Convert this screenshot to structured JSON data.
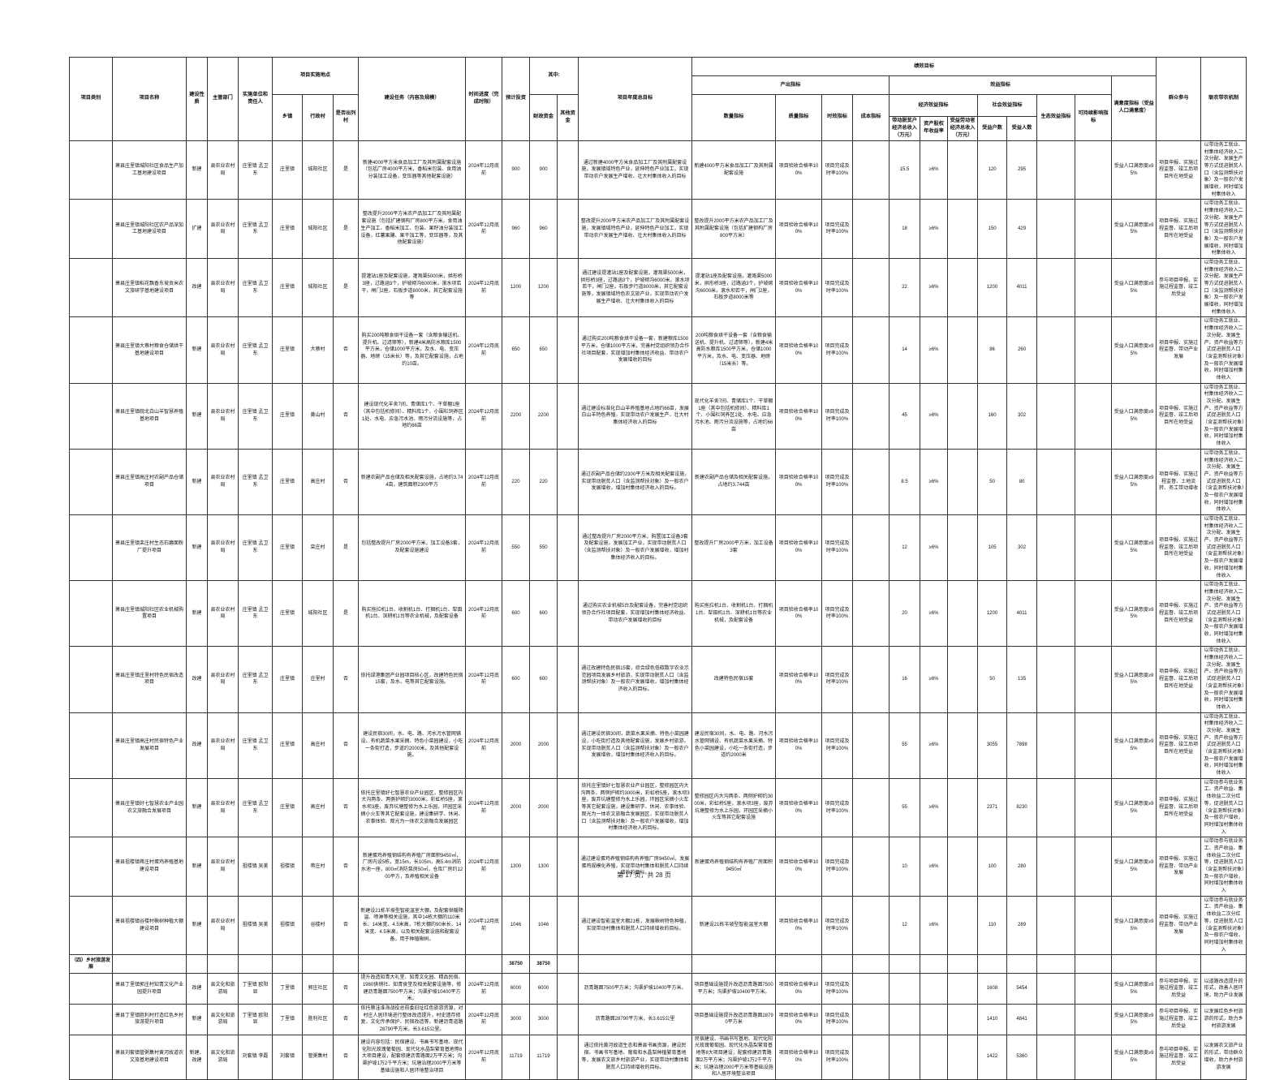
{
  "page": {
    "footer": "第 17 页，共 28 页"
  },
  "table": {
    "header": {
      "category": "项目类别",
      "name": "项目名称",
      "nature": "建设性质",
      "dept": "主管部门",
      "unit": "实施单位和责任人",
      "location": "项目实施地点",
      "town": "乡镇",
      "village": "行政村",
      "listed": "是否出列村",
      "task": "建设任务（内容及规模）",
      "time": "时间进度（完成时限）",
      "invest": "预计投资",
      "among": "其中:",
      "fiscal": "财政资金",
      "other": "其他资金",
      "goal": "项目年度总目标",
      "perf": "绩效目标",
      "output": "产出指标",
      "benefit": "效益指标",
      "qty": "数量指标",
      "quality": "质量指标",
      "timeliness": "时效指标",
      "cost": "成本指标",
      "econ": "经济效益指标",
      "social": "社会效益指标",
      "e1": "带动脱贫户经济总收入（万元）",
      "e2": "资产股权年收益率",
      "e3": "受益劳动者经济总收入（万元）",
      "hh": "受益户数",
      "ppl": "受益人数",
      "eco": "生态效益指标",
      "sus": "可持续影响指标",
      "sat": "满意度指标（受益人口满意度）",
      "part": "群众参与",
      "mech": "联农带农机制"
    },
    "rows": [
      {
        "cat": "",
        "name": "萧县庄里镇城阳社区食品生产加工基地建设项目",
        "nature": "新建",
        "dept": "县农业农村局",
        "unit": "庄里镇 孟卫东",
        "town": "庄里镇",
        "village": "城阳社区",
        "listed": "是",
        "task": "新建4000平方米食品加工厂及其附属配套设施（包括厂房4000平方米，香稻米包装、食用油分装加工设备，变压器等其他配套设施）",
        "time": "2024年12月底前",
        "invest": "900",
        "fiscal": "900",
        "other": "",
        "goal": "通过新建4000平方米食品加工厂及其附属配套设施，发展镇域特色产业，延伸特色产业加工，实现带动农户发展生产增收、壮大村集体收入的目标",
        "qty": "新建4000平方米食品加工厂及其附属配套设施",
        "quality": "项目验收合格率100%",
        "timeliness": "项目完成及时率100%",
        "cost": "",
        "e1": "15.5",
        "e2": "≥6%",
        "e3": "",
        "hh": "120",
        "ppl": "295",
        "eco": "",
        "sus": "",
        "sat": "受益人口满意度≥95%",
        "part": "项目申报、实施过程监督、竣工后项目所在地受益",
        "mech": "以带动务工就业、村集体经济收入二次分配、发展生产等方式促进脱贫人口（含监测帮扶对象）及一般农户发展增收，同时增加村集体收入"
      },
      {
        "cat": "",
        "name": "萧县庄里镇城阳社区农产品深加工基地建设项目",
        "nature": "扩建",
        "dept": "县农业农村局",
        "unit": "庄里镇 孟卫东",
        "town": "庄里镇",
        "village": "城阳社区",
        "listed": "是",
        "task": "整改提升2000平方米农产品加工厂及其附属配套设施（包括扩建钢构厂房800平方米，食用油生产加工、香稻米加工、包装、果籽油分装加工设备，红薯果脯、果干加工等，变压器等，及其他配套设施）",
        "time": "2024年12月底前",
        "invest": "960",
        "fiscal": "960",
        "other": "",
        "goal": "整改提升2000平方米农产品加工厂及其附属配套设施，发展镇域特色产业，延伸特色产业加工，实现带动农户发展生产增收、壮大村集体收入的目标",
        "qty": "整改提升2000平方米农产品加工厂及其附属配套设施（包括扩建钢构厂房800平方米）",
        "quality": "项目验收合格率100%",
        "timeliness": "项目完成及时率100%",
        "cost": "",
        "e1": "18",
        "e2": "≥6%",
        "e3": "",
        "hh": "150",
        "ppl": "429",
        "eco": "",
        "sus": "",
        "sat": "受益人口满意度≥95%",
        "part": "项目申报、实施过程监督、竣工后项目所在地受益",
        "mech": "以带动务工就业、村集体经济收入二次分配、发展生产等方式促进脱贫人口（含监测帮扶对象）及一般农户发展增收，同时增加村集体收入"
      },
      {
        "cat": "",
        "name": "萧县庄里镇稻花飘香东坡贡米农文旅研学基地建设项目",
        "nature": "改建",
        "dept": "县农业农村局",
        "unit": "庄里镇 孟卫东",
        "town": "庄里镇",
        "village": "城阳社区",
        "listed": "是",
        "task": "提灌站1座及配套设施，灌溉渠5000米，拱形桥3座，过路涵3个，护坡砌沟6000米，滚水坝若干，闸门2座，石板步道8000米，其它配套设施等",
        "time": "2024年12月底前",
        "invest": "1200",
        "fiscal": "1200",
        "other": "",
        "goal": "通过建设提灌站1座及配套设施，灌溉渠5000米，拱形桥3座，过路涵3个，护坡砌沟6000米，滚水坝若干，闸门2座，石板步行道8000米，其它配套设施等，发展镇域特色农文旅产业，实现带动农户发展生产增收、壮大村集体收入的目标",
        "qty": "提灌站1座及配套设施，灌溉渠5000米，拱形桥3座，过路涵3个，护坡砌沟6000米，滚水坝若干，闸门2座，石板步道8000米等",
        "quality": "项目验收合格率100%",
        "timeliness": "项目完成及时率100%",
        "cost": "",
        "e1": "22",
        "e2": "≥6%",
        "e3": "",
        "hh": "1200",
        "ppl": "4011",
        "eco": "",
        "sus": "",
        "sat": "受益人口满意度≥95%",
        "part": "参与项目申报、实施过程监督、竣工后受益",
        "mech": "以带动务工就业、村集体经济收入二次分配、发展生产等方式促进脱贫人口（含监测帮扶对象）及一般农户发展增收，同时增加村集体收入"
      },
      {
        "cat": "",
        "name": "萧县庄里镇大蔡村粮食仓储烘干基地建设项目",
        "nature": "新建",
        "dept": "县农业农村局",
        "unit": "庄里镇 孟卫东",
        "town": "庄里镇",
        "village": "大蔡村",
        "listed": "否",
        "task": "购买200吨粮食烘干设备一套（含粮食输送机、提升机、过滤筛等），新建4米高防水粮库1500平方米，仓储1000平方米，及水、电、变压器、地磅（15米长）等，及其它配套设施，占地约10亩。",
        "time": "2024年12月底前",
        "invest": "650",
        "fiscal": "650",
        "other": "",
        "goal": "通过购买200吨粮食烘干设备一套，新建粮库1500平方米，仓储1000平方米，完善村党组织领办合作社项目配套，实现增加村集体经济收益、带动农户发展增收的目标",
        "qty": "200吨粮食烘干设备一套（含粮食输送机、提升机、过滤筛等），新建4米高防水粮库1500平方米，仓储1000平方米，及水、电、变压器、地磅（15米长）等。",
        "quality": "项目验收合格率100%",
        "timeliness": "项目完成及时率100%",
        "cost": "",
        "e1": "14",
        "e2": "≥6%",
        "e3": "",
        "hh": "86",
        "ppl": "260",
        "eco": "",
        "sus": "",
        "sat": "受益人口满意度≥95%",
        "part": "项目申报、实施过程监督、带动产业发展",
        "mech": "以带动务工就业、村集体经济收入二次分配、发展生产、资产收益等方式促进脱贫人口（含监测帮扶对象）及一般农户发展增收，同时增加村集体收入"
      },
      {
        "cat": "",
        "name": "萧县庄里镇皖北白山羊智慧养殖基地项目",
        "nature": "新建",
        "dept": "县农业农村局",
        "unit": "庄里镇 孟卫东",
        "town": "庄里镇",
        "village": "黄山村",
        "listed": "否",
        "task": "建设现代化羊舍7间、青储库1个、干草棚1座（其中包括机修间）、精料库1个、小围栏饲养区1处、水电、应急污水池、雨污分流设施等，占地约66亩",
        "time": "2024年12月底前",
        "invest": "2200",
        "fiscal": "2200",
        "other": "",
        "goal": "通过建设标准化白山羊养殖基地占地约66亩，发展白山羊特色养殖，实现带动农户发展生产、壮大村集体经济收入的目标",
        "qty": "现代化羊舍7间、青储库1个、干草棚1座（其中包括机修间）、精料库1个、小围栏饲养区1处、水电、应急污水池、雨污分流设施等，占地约66亩",
        "quality": "项目验收合格率100%",
        "timeliness": "项目完成及时率100%",
        "cost": "",
        "e1": "45",
        "e2": "≥6%",
        "e3": "",
        "hh": "160",
        "ppl": "302",
        "eco": "",
        "sus": "",
        "sat": "受益人口满意度≥95%",
        "part": "项目申报、实施过程监督、竣工后项目所在地受益",
        "mech": "以带动务工就业、村集体经济收入二次分配、发展生产、资产收益等方式促进脱贫人口（含监测帮扶对象）及一般农户发展增收，同时增加村集体收入"
      },
      {
        "cat": "",
        "name": "萧县庄里镇高庄村农副产品仓储项目",
        "nature": "新建",
        "dept": "县农业农村局",
        "unit": "庄里镇 孟卫东",
        "town": "庄里镇",
        "village": "高庄村",
        "listed": "否",
        "task": "新建农副产品仓储及相关配套设施，占地约3.744亩，建筑面积2300平方",
        "time": "2024年12月底前",
        "invest": "220",
        "fiscal": "220",
        "other": "",
        "goal": "通过农副产品仓储约2300平方米及相关配套设施，实现带动脱贫人口（含监测帮扶对象）及一般农户发展增收，增加村集体经济收入的目标。",
        "qty": "新建农副产品仓储及相关配套设施，占地约3.744亩",
        "quality": "项目验收合格率100%",
        "timeliness": "项目完成及时率100%",
        "cost": "",
        "e1": "8.5",
        "e2": "≥6%",
        "e3": "",
        "hh": "50",
        "ppl": "80",
        "eco": "",
        "sus": "",
        "sat": "受益人口满意度≥95%",
        "part": "项目申报、实施过程监督、土地流转、务工带动增收",
        "mech": "以带动务工就业、村集体经济收入二次分配、发展生产、资产收益等方式促进脱贫人口（含监测帮扶对象）及一般农户发展增收，同时增加村集体收入"
      },
      {
        "cat": "",
        "name": "萧县庄里镇栾庄村生态石磨面粉厂提升项目",
        "nature": "新建",
        "dept": "县农业农村局",
        "unit": "庄里镇 孟卫东",
        "town": "庄里镇",
        "village": "栾庄村",
        "listed": "是",
        "task": "包括整改提升厂房2000平方米，加工设备3套，及配套设施建设",
        "time": "2024年12月底前",
        "invest": "550",
        "fiscal": "550",
        "other": "",
        "goal": "通过整改提升厂房2000平方米，购置加工设备3套及配套设施，发展加工产业，实现带动脱贫人口（含监测帮扶对象）及一般农户发展增收，增加村集体经济收入的目标。",
        "qty": "整改提升厂房2000平方米，加工设备3套",
        "quality": "项目验收合格率100%",
        "timeliness": "项目完成及时率100%",
        "cost": "",
        "e1": "12",
        "e2": "≥6%",
        "e3": "",
        "hh": "105",
        "ppl": "302",
        "eco": "",
        "sus": "",
        "sat": "受益人口满意度≥95%",
        "part": "项目申报、实施过程监督、竣工后项目所在地受益",
        "mech": "以带动务工就业、村集体经济收入二次分配、发展生产、资产收益等方式促进脱贫人口（含监测帮扶对象）及一般农户发展增收，同时增加村集体收入"
      },
      {
        "cat": "",
        "name": "萧县庄里镇城阳社区农业机械购置项目",
        "nature": "新建",
        "dept": "县农业农村局",
        "unit": "庄里镇 孟卫东",
        "town": "庄里镇",
        "village": "城阳社区",
        "listed": "是",
        "task": "购买拖拉机1台、收割机1台、打捆机1台、犁田机1台、深耕机1台等农业机械，及配套设备",
        "time": "2024年12月底前",
        "invest": "600",
        "fiscal": "600",
        "other": "",
        "goal": "通过购买农业机械5台及配套设备，完善村党组织领办合作社项目配套，实现增加村集体经济收益、带动农户发展增收的目标",
        "qty": "购买拖拉机1台、收割机1台、打捆机1台、犁田机1台、深耕机1台等农业机械，及配套设备",
        "quality": "项目验收合格率100%",
        "timeliness": "项目完成及时率100%",
        "cost": "",
        "e1": "20",
        "e2": "≥6%",
        "e3": "",
        "hh": "1200",
        "ppl": "4011",
        "eco": "",
        "sus": "",
        "sat": "受益人口满意度≥95%",
        "part": "项目申报、实施过程监督、竣工后项目所在地受益",
        "mech": "以带动务工就业、村集体经济收入二次分配、发展生产、资产收益等方式促进脱贫人口（含监测帮扶对象）及一般农户发展增收，同时增加村集体收入"
      },
      {
        "cat": "",
        "name": "萧县庄里镇庄里村特色民宿改造项目",
        "nature": "改建",
        "dept": "县农业农村局",
        "unit": "庄里镇 孟卫东",
        "town": "庄里镇",
        "village": "庄里村",
        "listed": "否",
        "task": "依托绿港集团产业园项目核心区，改建特色民宿15套，及水、电等其它配套设施。",
        "time": "2024年12月底前",
        "invest": "600",
        "fiscal": "600",
        "other": "",
        "goal": "通过改建特色民宿15套，综合绿色低碳数字农业示范园项目发展乡村旅游，实现带动脱贫人口（含监测帮扶对象）及一般农户发展增收，增加村集体经济收入的目标。",
        "qty": "改建特色民宿15套",
        "quality": "项目验收合格率100%",
        "timeliness": "项目完成及时率100%",
        "cost": "",
        "e1": "16",
        "e2": "≥6%",
        "e3": "",
        "hh": "50",
        "ppl": "135",
        "eco": "",
        "sus": "",
        "sat": "受益人口满意度≥95%",
        "part": "项目申报、实施过程监督、竣工后项目所在地受益",
        "mech": "以带动务工就业、村集体经济收入二次分配、发展生产、资产收益等方式促进脱贫人口（含监测帮扶对象）及一般农户发展增收，同时增加村集体收入"
      },
      {
        "cat": "",
        "name": "萧县庄里镇高庄村民宿特色产业发展项目",
        "nature": "改建",
        "dept": "县农业农村局",
        "unit": "庄里镇 孟卫东",
        "town": "庄里镇",
        "village": "高庄村",
        "listed": "否",
        "task": "建设民宿30间，水、电、路、河水污水管网铺设、有机蔬菜水果采摘、特色小菜园建设，小吃一条街打造，步道约2000米，及其他配套设施。",
        "time": "2024年12月底前",
        "invest": "2000",
        "fiscal": "2000",
        "other": "",
        "goal": "通过建设民宿30间，蔬菜水果采摘、特色小菜园建设，小吃街打造及其他配套设施，发展乡村旅游，实现带动脱贫人口（含监测帮扶对象）及一般农户发展增收，增加村集体经济收入的目标。",
        "qty": "建设民宿30间，水、电、路、河水污水管网铺设、有机蔬菜水果采摘、特色小菜园建设，小吃一条街打造，步道约2000米",
        "quality": "项目验收合格率100%",
        "timeliness": "项目完成及时率100%",
        "cost": "",
        "e1": "55",
        "e2": "≥6%",
        "e3": "",
        "hh": "3055",
        "ppl": "7898",
        "eco": "",
        "sus": "",
        "sat": "受益人口满意度≥95%",
        "part": "项目申报、实施过程监督、竣工后项目所在地受益",
        "mech": "以带动务工就业、村集体经济收入二次分配、发展生产、资产收益等方式促进脱贫人口（含监测帮扶对象）及一般农户发展增收，同时增加村集体收入"
      },
      {
        "cat": "",
        "name": "萧县庄里镇好七智慧农业产业园农文旅融合发展项目",
        "nature": "新建",
        "dept": "县农业农村局",
        "unit": "庄里镇 孟卫东",
        "town": "庄里镇",
        "village": "高庄村",
        "listed": "否",
        "task": "依托庄里镇好七智慧农业产业园区，整修园区内大沟两条、两侧护砌约3000米，彩虹桥5座，滚水坝3座，废弃坑塘整修为水上乐园，环园区采摘小火车等其它配套设施，建设集研学、休闲、农事体验、观光为一体农文旅融合发展园区",
        "time": "2024年12月底前",
        "invest": "2000",
        "fiscal": "2000",
        "other": "",
        "goal": "依托庄里镇好七智慧农业产业园区，整修园区内大沟两条、两侧护砌约3000米，彩虹桥5座，滚水坝3座，废弃坑塘整修为水上乐园，环园区采摘小火车等其它配套设施，建设集研学、休闲、农事体验、观光为一体农文旅融合发展园区，实现带动脱贫人口（含监测帮扶对象）及一般农户发展增收，增加村集体经济收入的目标。",
        "qty": "整修园区内大沟两条、两侧护砌约3000米，彩虹桥5座，滚水坝3座，废弃坑塘整修为水上乐园，环园区采摘小火车等其它配套设施",
        "quality": "项目验收合格率100%",
        "timeliness": "项目完成及时率100%",
        "cost": "",
        "e1": "55",
        "e2": "≥6%",
        "e3": "",
        "hh": "2371",
        "ppl": "8230",
        "eco": "",
        "sus": "",
        "sat": "受益人口满意度≥95%",
        "part": "项目申报、实施过程监督、竣工后项目所在地受益",
        "mech": "以带动参与就业务工、资产收益、集体收益二次分红等，促进脱贫人口（含监测帮扶对象）及一般农户增收，同时增加村集体收入"
      },
      {
        "cat": "",
        "name": "萧县祖楼镇蒋庄村蛋鸡养殖基地建设项目",
        "nature": "新建",
        "dept": "县农业农村局",
        "unit": "祖楼镇 吴美",
        "town": "祖楼镇",
        "village": "蒋庄村",
        "listed": "否",
        "task": "新建蛋鸡养殖钢结构有养殖厂房面积9450㎡，厂房内设5栋，宽15m，长105m，高5.4m消防水池一座，800㎡消防泵房50㎡，仓库厂房约1200平方，及养殖相关设备",
        "time": "2024年12月底前",
        "invest": "1300",
        "fiscal": "1300",
        "other": "",
        "goal": "通过建设蛋鸡养殖钢结构有养殖厂房9450㎡，发展蛋鸡规模化养殖，实现带动村集体和脱贫人口持续增收的目标。",
        "qty": "新建蛋鸡养殖钢结构有养殖厂房面积9450㎡",
        "quality": "项目验收合格率100%",
        "timeliness": "项目完成及时率100%",
        "cost": "",
        "e1": "10",
        "e2": "≥6%",
        "e3": "",
        "hh": "100",
        "ppl": "280",
        "eco": "",
        "sus": "",
        "sat": "受益人口满意度≥95%",
        "part": "项目申报、实施过程监督、带动产业发展",
        "mech": "以带动参与就业务工、资产收益、集体收益二次分红等，促进脱贫人口（含监测帮扶对象）及一般农户增收，同时增加村集体收入"
      },
      {
        "cat": "",
        "name": "萧县祖楼镇谷楼村楸树种植大棚建设项目",
        "nature": "新建",
        "dept": "县农业农村局",
        "unit": "祖楼镇 吴美",
        "town": "祖楼镇",
        "village": "谷楼村",
        "listed": "否",
        "task": "新建设21栋半坡型智能温室大棚，及配套供暖降温、喷淋等相关设施，其中14栋大棚的110米长、14米宽、4.5米高，7栋大棚的90米长、14米宽、4.5米高，以及相关配套设施和配套设备，用于种植楸树。",
        "time": "2024年12月底前",
        "invest": "1046",
        "fiscal": "1046",
        "other": "",
        "goal": "通过建设智能温室大棚21栋，发展楸树特色种植，实现带动村集体和脱贫人口持续增收的目标。",
        "qty": "新建设21栋半坡型智能温室大棚",
        "quality": "项目验收合格率100%",
        "timeliness": "项目完成及时率100%",
        "cost": "",
        "e1": "12",
        "e2": "≥6%",
        "e3": "",
        "hh": "110",
        "ppl": "289",
        "eco": "",
        "sus": "",
        "sat": "受益人口满意度≥95%",
        "part": "项目申报、实施过程监督、带动产业发展",
        "mech": "以带动参与就业务工、资产收益、集体收益二次分红等，促进脱贫人口（含监测帮扶对象）及一般农户增收，同时增加村集体收入"
      },
      {
        "section": true,
        "cat": "（四）乡村旅游发展",
        "name": "",
        "nature": "",
        "dept": "",
        "unit": "",
        "town": "",
        "village": "",
        "listed": "",
        "task": "",
        "time": "",
        "invest": "38750",
        "fiscal": "38750",
        "other": "",
        "goal": "",
        "qty": "",
        "quality": "",
        "timeliness": "",
        "cost": "",
        "e1": "",
        "e2": "",
        "e3": "",
        "hh": "",
        "ppl": "",
        "eco": "",
        "sus": "",
        "sat": "",
        "part": "",
        "mech": ""
      },
      {
        "cat": "",
        "name": "萧县丁里镇郭庄村知青文化产业园提升项目",
        "nature": "改建",
        "dept": "县文化和旅游局",
        "unit": "丁里镇 欧阳显",
        "town": "丁里镇",
        "village": "郭庄社区",
        "listed": "否",
        "task": "提升改造知青大礼堂、知青文化园、精品民宿、1980供销社、知青食堂及相关配套设施等，修建沥青路面7500平方米；沟渠护坡10400平方米。",
        "time": "2024年12月底前",
        "invest": "6000",
        "fiscal": "6000",
        "other": "",
        "goal": "沥青路面7500平方米；沟渠护坡10400平方米。",
        "qty": "项目基础设施提升改造沥青路面7500平方米；沟渠护坡10400平方米。",
        "quality": "项目验收合格率100%",
        "timeliness": "项目完成及时率100%",
        "cost": "",
        "e1": "",
        "e2": "",
        "e3": "",
        "hh": "1608",
        "ppl": "5454",
        "eco": "",
        "sus": "",
        "sat": "受益人口满意度≥95%",
        "part": "参与项目申报、实施过程监督、竣工后受益",
        "mech": "以道路改造提升的形式，改善人居环境，助力产业发展"
      },
      {
        "cat": "",
        "name": "萧县丁里镇胜利村打造红色乡村旅游提升项目",
        "nature": "新建",
        "dept": "县文化和旅游局",
        "unit": "丁里镇 欧阳显",
        "town": "丁里镇",
        "village": "胜利社区",
        "listed": "否",
        "task": "依托蔡洼淮海战役总前委旧址红色旅游资源，对村庄人居环境进行整体改造提升，村史遗存修复，文化传承保护、民宿改造等。新建沥青道路28790平方米，长3.615公里。",
        "time": "2024年12月底前",
        "invest": "3000",
        "fiscal": "3000",
        "other": "",
        "goal": "沥青路面28790平方米，长3.615公里",
        "qty": "项目基础设施提升改造沥青路面28790平方米",
        "quality": "项目验收合格率100%",
        "timeliness": "项目完成及时率100%",
        "cost": "",
        "e1": "",
        "e2": "",
        "e3": "",
        "hh": "1410",
        "ppl": "4841",
        "eco": "",
        "sus": "",
        "sat": "受益人口满意度≥95%",
        "part": "参与项目申报、实施过程监督、竣工后受益",
        "mech": "以发展红色乡村旅游的形式，助力乡村旅游发展"
      },
      {
        "cat": "",
        "name": "萧县刘套镇管粥集村黄河故道农文旅基地建设项目",
        "nature": "新建、改建",
        "dept": "县文化和旅游局",
        "unit": "刘套镇 李磊",
        "town": "刘套镇",
        "village": "管粥集村",
        "listed": "否",
        "task": "建设内容包括：民宿建设、书画书写基地、现代化阳光玫瑰葡萄园、现代化水晶梨繁育基地等8大项目建设，配套修建沥青路面2万平方米；沟渠护坡1万2千平方米；坑塘治理2000平方米等基础设施和人居环境整治项目",
        "time": "2024年12月底前",
        "invest": "11719",
        "fiscal": "11719",
        "other": "",
        "goal": "通过依托黄河故道生态和萧县书画资源，建设民宿、书画书写基地、葡萄和水晶梨种植繁育基地等，发展农文旅乡村旅游产业，实现带动村集体和脱贫人口持续增收的目标。",
        "qty": "民宿建设、书画书写基地、现代化阳光玫瑰葡萄园、现代化水晶梨繁育基地等8大项目建设，配套修建沥青路面2万平方米；沟渠护坡1万2千平方米；坑塘治理2000平方米等基础设施和人居环境整治项目",
        "quality": "项目验收合格率100%",
        "timeliness": "项目完成及时率100%",
        "cost": "",
        "e1": "",
        "e2": "",
        "e3": "",
        "hh": "1422",
        "ppl": "5360",
        "eco": "",
        "sus": "",
        "sat": "受益人口满意度≥95%",
        "part": "参与项目申报、实施过程监督、竣工后受益",
        "mech": "以发展农文旅产业的形式，带动群众增收，助力乡村旅游发展"
      }
    ]
  }
}
